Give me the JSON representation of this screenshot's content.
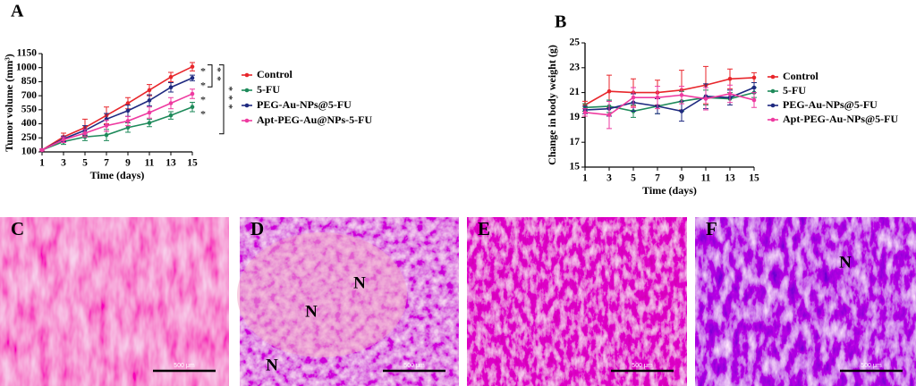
{
  "chart_data": [
    {
      "type": "line",
      "panel": "A",
      "xlabel": "Time (days)",
      "ylabel": "Tumor volume (mm³)",
      "x": [
        1,
        3,
        5,
        7,
        9,
        11,
        13,
        15
      ],
      "xlim": [
        1,
        15
      ],
      "xticks": [
        1,
        3,
        5,
        7,
        9,
        11,
        13,
        15
      ],
      "ylim": [
        100,
        1150
      ],
      "yticks": [
        100,
        250,
        400,
        550,
        700,
        850,
        1000,
        1150
      ],
      "series": [
        {
          "name": "Control",
          "color": "#e8262b",
          "values": [
            120,
            260,
            360,
            490,
            620,
            760,
            900,
            1010
          ],
          "errors": [
            10,
            40,
            90,
            90,
            60,
            60,
            50,
            45
          ]
        },
        {
          "name": "5-FU",
          "color": "#1e8a5a",
          "values": [
            120,
            210,
            260,
            280,
            360,
            410,
            490,
            580
          ],
          "errors": [
            10,
            30,
            40,
            60,
            50,
            40,
            40,
            50
          ]
        },
        {
          "name": "PEG-Au-NPs@5-FU",
          "color": "#1f2a80",
          "values": [
            120,
            240,
            330,
            450,
            540,
            650,
            790,
            890
          ],
          "errors": [
            10,
            30,
            50,
            60,
            60,
            60,
            50,
            30
          ]
        },
        {
          "name": "Apt-PEG-Au@NPs-5-FU",
          "color": "#ee3aa0",
          "values": [
            120,
            230,
            300,
            380,
            430,
            520,
            620,
            720
          ],
          "errors": [
            10,
            30,
            40,
            60,
            50,
            60,
            60,
            50
          ]
        }
      ],
      "annotations": [
        "*",
        "*",
        "*",
        "*",
        "**",
        "***"
      ]
    },
    {
      "type": "line",
      "panel": "B",
      "xlabel": "Time (days)",
      "ylabel": "Change in body weight (g)",
      "x": [
        1,
        3,
        5,
        7,
        9,
        11,
        13,
        15
      ],
      "xlim": [
        1,
        15
      ],
      "xticks": [
        1,
        3,
        5,
        7,
        9,
        11,
        13,
        15
      ],
      "ylim": [
        15,
        25
      ],
      "yticks": [
        15,
        17,
        19,
        21,
        23,
        25
      ],
      "series": [
        {
          "name": "Control",
          "color": "#e8262b",
          "values": [
            20.0,
            21.1,
            21.0,
            21.0,
            21.2,
            21.6,
            22.1,
            22.2
          ],
          "errors": [
            0.3,
            1.3,
            1.1,
            1.0,
            1.6,
            1.5,
            0.8,
            0.4
          ]
        },
        {
          "name": "5-FU",
          "color": "#1e8a5a",
          "values": [
            19.8,
            19.9,
            19.5,
            19.9,
            20.3,
            20.6,
            20.5,
            21.0
          ],
          "errors": [
            0.3,
            0.5,
            0.5,
            0.6,
            0.8,
            0.6,
            0.5,
            0.4
          ]
        },
        {
          "name": "PEG-Au-NPs@5-FU",
          "color": "#1f2a80",
          "values": [
            19.6,
            19.7,
            20.2,
            19.9,
            19.5,
            20.7,
            20.6,
            21.4
          ],
          "errors": [
            0.3,
            0.6,
            0.7,
            0.6,
            0.8,
            1.0,
            0.6,
            0.4
          ]
        },
        {
          "name": "Apt-PEG-Au-NPs@5-FU",
          "color": "#ee3aa0",
          "values": [
            19.4,
            19.2,
            20.6,
            20.6,
            20.8,
            20.5,
            20.9,
            20.4
          ],
          "errors": [
            0.3,
            1.1,
            0.8,
            0.9,
            0.7,
            0.9,
            0.7,
            0.6
          ]
        }
      ]
    }
  ],
  "images": [
    {
      "panel": "C",
      "marks": [],
      "scale": "500 μm"
    },
    {
      "panel": "D",
      "marks": [
        "N",
        "N",
        "N"
      ],
      "scale": "500 μm"
    },
    {
      "panel": "E",
      "marks": [],
      "scale": "500 μm"
    },
    {
      "panel": "F",
      "marks": [
        "N"
      ],
      "scale": "500 μm"
    }
  ]
}
